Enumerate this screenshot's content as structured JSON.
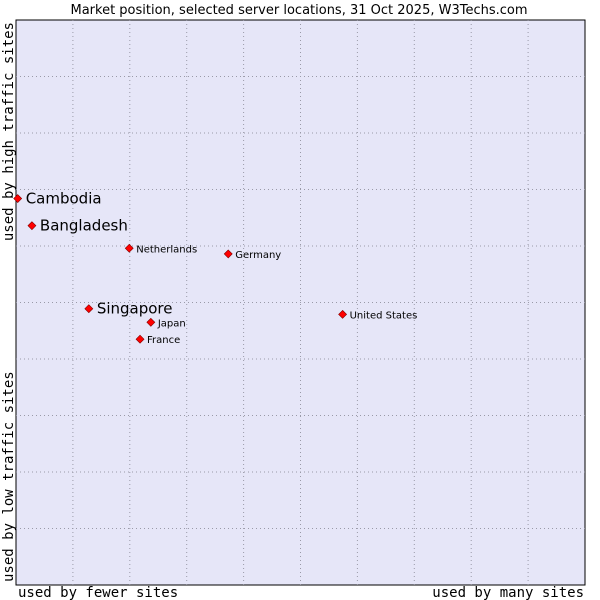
{
  "chart_data": {
    "type": "scatter",
    "title": "Market position, selected server locations, 31 Oct 2025, W3Techs.com",
    "xlabel_left": "used by fewer sites",
    "xlabel_right": "used by many sites",
    "ylabel_bottom": "used by low traffic sites",
    "ylabel_top": "used by high traffic sites",
    "xlim": [
      0,
      100
    ],
    "ylim": [
      0,
      100
    ],
    "grid": true,
    "marker_color": "#ff0000",
    "plot_background": "#e6e6f8",
    "points": [
      {
        "name": "Cambodia",
        "x": 0.3,
        "y": 68.4,
        "emphasis": true
      },
      {
        "name": "Bangladesh",
        "x": 2.8,
        "y": 63.6,
        "emphasis": true
      },
      {
        "name": "Netherlands",
        "x": 19.9,
        "y": 59.6,
        "emphasis": false
      },
      {
        "name": "Germany",
        "x": 37.3,
        "y": 58.6,
        "emphasis": false
      },
      {
        "name": "Singapore",
        "x": 12.8,
        "y": 48.9,
        "emphasis": true
      },
      {
        "name": "Japan",
        "x": 23.7,
        "y": 46.5,
        "emphasis": false
      },
      {
        "name": "United States",
        "x": 57.4,
        "y": 47.9,
        "emphasis": false
      },
      {
        "name": "France",
        "x": 21.8,
        "y": 43.5,
        "emphasis": false
      }
    ]
  }
}
